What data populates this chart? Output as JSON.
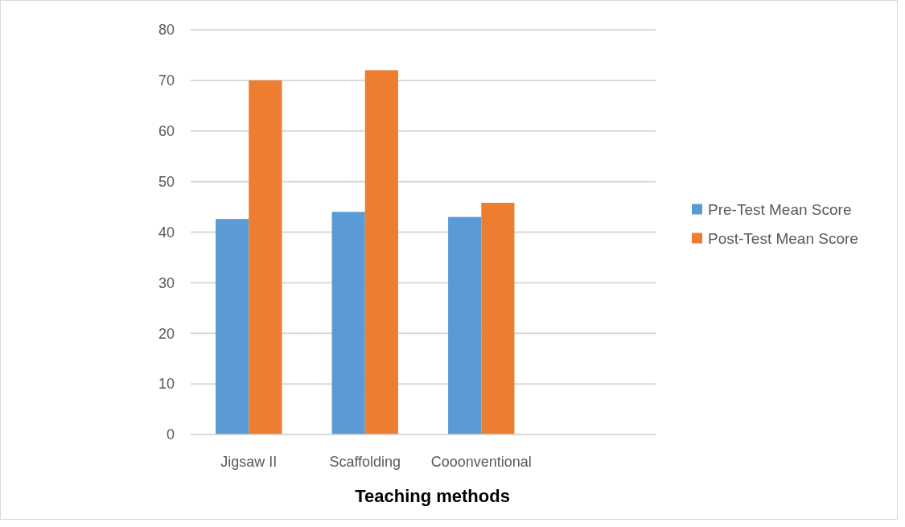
{
  "chart_data": {
    "type": "bar",
    "xlabel": "Teaching methods",
    "categories": [
      "Jigsaw II",
      "Scaffolding",
      "Cooonventional",
      null
    ],
    "series": [
      {
        "name": "Pre-Test Mean Score",
        "color": "#5b9bd5",
        "values": [
          42.6,
          44,
          43,
          null
        ]
      },
      {
        "name": "Post-Test Mean Score",
        "color": "#ed7d31",
        "values": [
          70,
          72,
          45.8,
          null
        ]
      }
    ],
    "ylim": [
      0,
      80
    ],
    "yticks": [
      0,
      10,
      20,
      30,
      40,
      50,
      60,
      70,
      80
    ],
    "grid": "y",
    "legend": "right"
  }
}
